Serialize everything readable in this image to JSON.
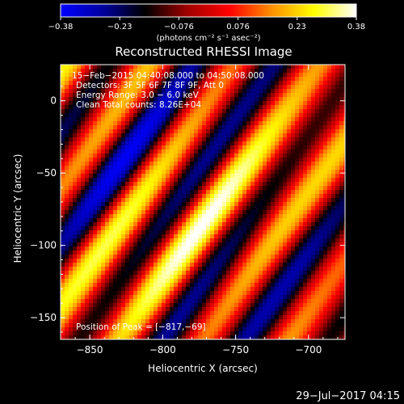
{
  "colorbar": {
    "ticks": [
      "−0.38",
      "−0.23",
      "−0.076",
      "0.076",
      "0.23",
      "0.38"
    ],
    "unit_label": "(photons cm⁻² s⁻¹ asec⁻²)",
    "range": [
      -0.38,
      0.38
    ],
    "colormap_stops": [
      "#0000ff",
      "#0000a0",
      "#000000",
      "#a00000",
      "#ff0000",
      "#ff9000",
      "#ffff00",
      "#ffffff"
    ]
  },
  "chart_data": {
    "type": "heatmap",
    "title": "Reconstructed RHESSI Image",
    "xlabel": "Heliocentric X (arcsec)",
    "ylabel": "Heliocentric Y (arcsec)",
    "xlim": [
      -870,
      -675
    ],
    "ylim": [
      -165,
      25
    ],
    "xticks": [
      "−850",
      "−800",
      "−750",
      "−700"
    ],
    "yticks": [
      "0",
      "−50",
      "−100",
      "−150"
    ],
    "xtick_values": [
      -850,
      -800,
      -750,
      -700
    ],
    "ytick_values": [
      0,
      -50,
      -100,
      -150
    ],
    "annotations": [
      "15−Feb−2015 04:40:08.000 to 04:50:08.000",
      "Detectors: 3F 5F 6F 7F 8F 9F, Att 0",
      "Energy Range: 3.0 − 6.0 keV",
      "Clean     Total counts: 8.26E+04",
      "Position of Peak = [−817,−69]"
    ],
    "peak": [
      -817,
      -69
    ]
  },
  "footer": {
    "timestamp": "29−Jul−2017 04:15"
  }
}
